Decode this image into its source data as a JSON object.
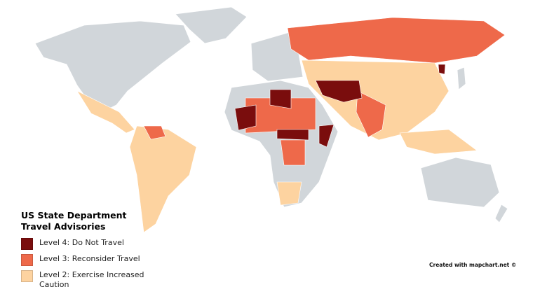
{
  "legend": {
    "title": "US State Department Travel Advisories",
    "items": [
      {
        "label": "Level 4: Do Not Travel",
        "color": "#7a0d0d"
      },
      {
        "label": "Level 3: Reconsider Travel",
        "color": "#ee694a"
      },
      {
        "label": "Level 2: Exercise Increased Caution",
        "color": "#fdd3a0"
      }
    ]
  },
  "credit": "Created with mapchart.net ©"
}
